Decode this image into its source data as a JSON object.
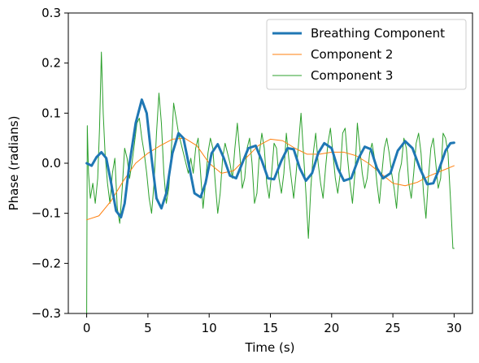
{
  "chart_data": {
    "type": "line",
    "xlabel": "Time (s)",
    "ylabel": "Phase (radians)",
    "xlim": [
      -1.5,
      31.5
    ],
    "ylim": [
      -0.3,
      0.3
    ],
    "xticks": [
      0,
      5,
      10,
      15,
      20,
      25,
      30
    ],
    "yticks": [
      -0.3,
      -0.2,
      -0.1,
      0.0,
      0.1,
      0.2,
      0.3
    ],
    "ytick_labels": [
      "−0.3",
      "−0.2",
      "−0.1",
      "0.0",
      "0.1",
      "0.2",
      "0.3"
    ],
    "grid": false,
    "legend": "top-right",
    "series": [
      {
        "name": "Breathing Component",
        "color": "#1f77b4",
        "x": [
          0,
          0.4,
          0.8,
          1.2,
          1.6,
          2.0,
          2.4,
          2.8,
          3.1,
          3.5,
          4.0,
          4.5,
          4.9,
          5.3,
          5.7,
          6.1,
          6.5,
          7.0,
          7.5,
          7.9,
          8.4,
          8.8,
          9.3,
          9.7,
          10.2,
          10.7,
          11.2,
          11.7,
          12.2,
          12.7,
          13.2,
          13.8,
          14.3,
          14.8,
          15.3,
          15.9,
          16.4,
          16.9,
          17.4,
          17.9,
          18.4,
          18.9,
          19.4,
          20.0,
          20.5,
          21.0,
          21.6,
          22.2,
          22.7,
          23.2,
          23.7,
          24.2,
          24.8,
          25.4,
          26.0,
          26.6,
          27.2,
          27.8,
          28.3,
          28.8,
          29.3,
          29.7,
          30.0
        ],
        "y": [
          0.0,
          -0.005,
          0.012,
          0.022,
          0.01,
          -0.04,
          -0.095,
          -0.108,
          -0.08,
          0.0,
          0.08,
          0.127,
          0.1,
          0.01,
          -0.07,
          -0.09,
          -0.06,
          0.02,
          0.06,
          0.05,
          -0.01,
          -0.06,
          -0.068,
          -0.04,
          0.02,
          0.038,
          0.01,
          -0.025,
          -0.03,
          0.0,
          0.03,
          0.035,
          0.005,
          -0.03,
          -0.032,
          0.005,
          0.03,
          0.028,
          -0.01,
          -0.035,
          -0.02,
          0.02,
          0.04,
          0.03,
          -0.01,
          -0.035,
          -0.03,
          0.01,
          0.033,
          0.028,
          -0.01,
          -0.03,
          -0.02,
          0.025,
          0.044,
          0.03,
          -0.01,
          -0.042,
          -0.04,
          -0.01,
          0.025,
          0.04,
          0.041
        ]
      },
      {
        "name": "Component 2",
        "color": "#ff7f0e",
        "x": [
          0,
          1,
          2,
          3,
          4,
          5,
          6,
          7,
          8,
          9,
          10,
          11,
          12,
          13,
          14,
          15,
          16,
          17,
          18,
          19,
          20,
          21,
          22,
          23,
          24,
          25,
          26,
          27,
          28,
          29,
          30
        ],
        "y": [
          -0.113,
          -0.105,
          -0.075,
          -0.035,
          0.0,
          0.02,
          0.035,
          0.048,
          0.05,
          0.035,
          0.0,
          -0.02,
          -0.015,
          0.01,
          0.035,
          0.048,
          0.045,
          0.03,
          0.018,
          0.018,
          0.022,
          0.022,
          0.015,
          0.0,
          -0.02,
          -0.04,
          -0.045,
          -0.038,
          -0.025,
          -0.015,
          -0.005
        ]
      },
      {
        "name": "Component 3",
        "color": "#2ca02c",
        "x": [
          0,
          0.05,
          0.15,
          0.3,
          0.5,
          0.7,
          0.9,
          1.05,
          1.2,
          1.35,
          1.5,
          1.7,
          1.9,
          2.1,
          2.3,
          2.5,
          2.7,
          2.9,
          3.1,
          3.3,
          3.5,
          3.7,
          3.9,
          4.1,
          4.3,
          4.5,
          4.7,
          4.9,
          5.1,
          5.3,
          5.5,
          5.7,
          5.9,
          6.1,
          6.3,
          6.5,
          6.7,
          6.9,
          7.1,
          7.3,
          7.5,
          7.7,
          7.9,
          8.1,
          8.3,
          8.5,
          8.7,
          8.9,
          9.1,
          9.3,
          9.5,
          9.7,
          9.9,
          10.1,
          10.3,
          10.5,
          10.7,
          10.9,
          11.1,
          11.3,
          11.5,
          11.7,
          11.9,
          12.1,
          12.3,
          12.5,
          12.7,
          12.9,
          13.1,
          13.3,
          13.5,
          13.7,
          13.9,
          14.1,
          14.3,
          14.5,
          14.7,
          14.9,
          15.1,
          15.3,
          15.5,
          15.7,
          15.9,
          16.1,
          16.3,
          16.5,
          16.7,
          16.9,
          17.1,
          17.3,
          17.5,
          17.7,
          17.9,
          18.1,
          18.3,
          18.5,
          18.7,
          18.9,
          19.1,
          19.3,
          19.5,
          19.7,
          19.9,
          20.1,
          20.3,
          20.5,
          20.7,
          20.9,
          21.1,
          21.3,
          21.5,
          21.7,
          21.9,
          22.1,
          22.3,
          22.5,
          22.7,
          22.9,
          23.1,
          23.3,
          23.5,
          23.7,
          23.9,
          24.1,
          24.3,
          24.5,
          24.7,
          24.9,
          25.1,
          25.3,
          25.5,
          25.7,
          25.9,
          26.1,
          26.3,
          26.5,
          26.7,
          26.9,
          27.1,
          27.3,
          27.5,
          27.7,
          27.9,
          28.1,
          28.3,
          28.5,
          28.7,
          28.9,
          29.1,
          29.3,
          29.5,
          29.7,
          29.9,
          30.0
        ],
        "y": [
          -0.3,
          0.075,
          -0.02,
          -0.07,
          -0.04,
          -0.08,
          -0.03,
          0.07,
          0.222,
          0.1,
          0.02,
          -0.04,
          -0.08,
          -0.02,
          0.01,
          -0.09,
          -0.12,
          -0.05,
          0.03,
          0.01,
          -0.03,
          0.0,
          0.04,
          0.08,
          0.09,
          0.05,
          0.02,
          -0.02,
          -0.07,
          -0.1,
          -0.04,
          0.06,
          0.14,
          0.08,
          -0.02,
          -0.08,
          -0.05,
          0.02,
          0.12,
          0.09,
          0.06,
          0.04,
          0.02,
          0.0,
          -0.02,
          0.01,
          -0.02,
          0.03,
          0.05,
          -0.02,
          -0.09,
          -0.04,
          0.02,
          0.05,
          0.03,
          -0.04,
          -0.1,
          -0.06,
          0.01,
          0.04,
          0.02,
          0.0,
          -0.03,
          0.03,
          0.08,
          0.02,
          -0.05,
          -0.03,
          0.03,
          0.05,
          0.0,
          -0.08,
          -0.06,
          0.02,
          0.06,
          0.03,
          -0.04,
          -0.07,
          -0.02,
          0.04,
          0.03,
          -0.03,
          -0.06,
          -0.02,
          0.06,
          0.01,
          -0.03,
          -0.07,
          -0.02,
          0.04,
          0.1,
          0.02,
          -0.06,
          -0.15,
          -0.05,
          0.02,
          0.06,
          0.0,
          -0.04,
          -0.07,
          -0.01,
          0.04,
          0.07,
          0.02,
          -0.03,
          -0.06,
          -0.02,
          0.06,
          0.07,
          0.01,
          -0.04,
          -0.08,
          -0.02,
          0.08,
          0.03,
          -0.02,
          -0.05,
          -0.03,
          0.02,
          0.04,
          0.01,
          -0.04,
          -0.08,
          -0.02,
          0.03,
          0.05,
          0.02,
          -0.02,
          -0.05,
          -0.09,
          -0.02,
          0.0,
          0.05,
          0.03,
          -0.04,
          -0.07,
          -0.02,
          0.04,
          0.06,
          0.02,
          -0.06,
          -0.11,
          -0.03,
          0.03,
          0.05,
          0.0,
          -0.05,
          -0.03,
          0.06,
          0.05,
          0.02,
          -0.07,
          -0.17,
          -0.17
        ]
      }
    ]
  }
}
